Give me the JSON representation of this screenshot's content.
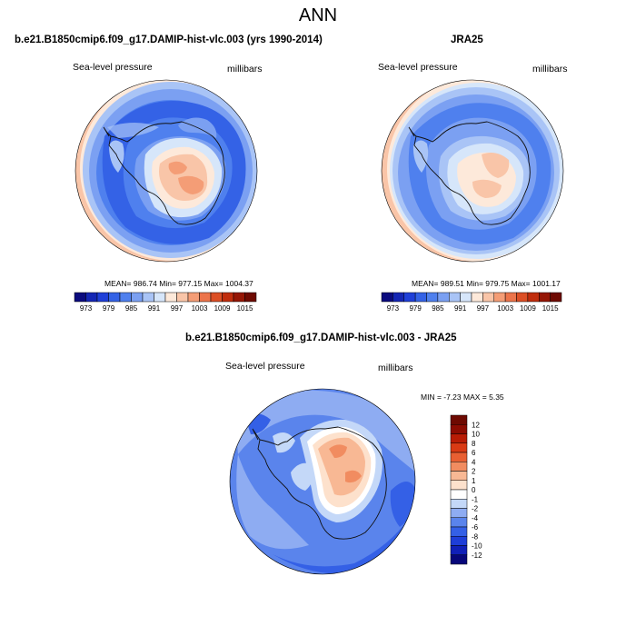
{
  "page": {
    "main_title": "ANN"
  },
  "panels": [
    {
      "title": "b.e21.B1850cmip6.f09_g17.DAMIP-hist-vlc.003 (yrs 1990-2014)",
      "left_label": "Sea-level pressure",
      "right_label": "millibars",
      "stats": "MEAN= 986.74  Min= 977.15  Max= 1004.37"
    },
    {
      "title": "JRA25",
      "left_label": "Sea-level pressure",
      "right_label": "millibars",
      "stats": "MEAN= 989.51  Min= 979.75  Max= 1001.17"
    },
    {
      "title": "b.e21.B1850cmip6.f09_g17.DAMIP-hist-vlc.003 - JRA25",
      "left_label": "Sea-level pressure",
      "right_label": "millibars",
      "stats": "MIN =  -7.23 MAX =   5.35"
    }
  ],
  "chart_data": [
    {
      "type": "heatmap",
      "title": "b.e21.B1850cmip6.f09_g17.DAMIP-hist-vlc.003 (yrs 1990-2014)",
      "projection": "south polar stereographic",
      "variable": "Sea-level pressure",
      "units": "millibars",
      "mean": 986.74,
      "min": 977.15,
      "max": 1004.37,
      "colorbar": {
        "orientation": "horizontal",
        "levels": [
          973,
          976,
          979,
          982,
          985,
          988,
          991,
          994,
          997,
          1000,
          1003,
          1006,
          1009,
          1012,
          1015
        ],
        "tick_labels": [
          "973",
          "979",
          "985",
          "991",
          "997",
          "1003",
          "1009",
          "1015"
        ],
        "colors": [
          "#0b0b7e",
          "#1426b4",
          "#1f3fd8",
          "#3462e6",
          "#4f80ee",
          "#7ba0f2",
          "#a9c4f6",
          "#d6e6fa",
          "#fde9da",
          "#f9c5a8",
          "#f49d76",
          "#ec744a",
          "#dc4f25",
          "#c02d0d",
          "#951605",
          "#6e0a02"
        ]
      }
    },
    {
      "type": "heatmap",
      "title": "JRA25",
      "projection": "south polar stereographic",
      "variable": "Sea-level pressure",
      "units": "millibars",
      "mean": 989.51,
      "min": 979.75,
      "max": 1001.17,
      "colorbar": {
        "orientation": "horizontal",
        "levels": [
          973,
          976,
          979,
          982,
          985,
          988,
          991,
          994,
          997,
          1000,
          1003,
          1006,
          1009,
          1012,
          1015
        ],
        "tick_labels": [
          "973",
          "979",
          "985",
          "991",
          "997",
          "1003",
          "1009",
          "1015"
        ],
        "colors": [
          "#0b0b7e",
          "#1426b4",
          "#1f3fd8",
          "#3462e6",
          "#4f80ee",
          "#7ba0f2",
          "#a9c4f6",
          "#d6e6fa",
          "#fde9da",
          "#f9c5a8",
          "#f49d76",
          "#ec744a",
          "#dc4f25",
          "#c02d0d",
          "#951605",
          "#6e0a02"
        ]
      }
    },
    {
      "type": "heatmap",
      "title": "b.e21.B1850cmip6.f09_g17.DAMIP-hist-vlc.003 - JRA25",
      "projection": "south polar stereographic",
      "variable": "Sea-level pressure",
      "units": "millibars",
      "min": -7.23,
      "max": 5.35,
      "colorbar": {
        "orientation": "vertical",
        "levels": [
          -12,
          -10,
          -8,
          -6,
          -4,
          -2,
          -1,
          0,
          1,
          2,
          4,
          6,
          8,
          10,
          12
        ],
        "tick_labels": [
          "12",
          "10",
          "8",
          "6",
          "4",
          "2",
          "1",
          "0",
          "-1",
          "-2",
          "-4",
          "-6",
          "-8",
          "-10",
          "-12"
        ],
        "colors": [
          "#07077a",
          "#1020b8",
          "#1e3ed8",
          "#3460e6",
          "#5a84ec",
          "#8eacf2",
          "#c4d8f8",
          "#ffffff",
          "#fde1cc",
          "#f8b894",
          "#f18c60",
          "#e85f32",
          "#d93a14",
          "#b81c05",
          "#8c0c02",
          "#6e0a02"
        ]
      }
    }
  ]
}
